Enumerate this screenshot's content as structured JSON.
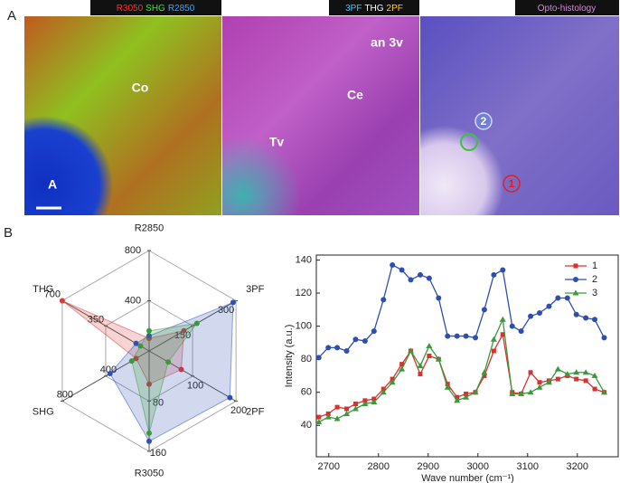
{
  "figure": {
    "panels": [
      "A",
      "B"
    ],
    "images": [
      {
        "header": [
          {
            "text": "R3050",
            "color": "#ff3030"
          },
          {
            "text": "SHG",
            "color": "#40e040"
          },
          {
            "text": "R2850",
            "color": "#40a0ff"
          }
        ],
        "labels": [
          "Co",
          "A"
        ]
      },
      {
        "header": [
          {
            "text": "3PF",
            "color": "#40c8ff"
          },
          {
            "text": "THG",
            "color": "#ffffff"
          },
          {
            "text": "2PF",
            "color": "#ffd040"
          }
        ],
        "labels": [
          "an 3v",
          "Ce",
          "Tv"
        ]
      },
      {
        "header": [
          {
            "text": "Opto-histology",
            "color": "#e080e0"
          }
        ],
        "labels": [
          "2",
          "1"
        ]
      }
    ]
  },
  "chart_data": [
    {
      "type": "radar",
      "axes": [
        {
          "name": "R2850",
          "color": "#222222",
          "lim": [
            0,
            800
          ],
          "ticks": [
            400,
            800
          ]
        },
        {
          "name": "3PF",
          "color": "#d02020",
          "lim": [
            0,
            300
          ],
          "ticks": [
            150,
            300
          ]
        },
        {
          "name": "2PF",
          "color": "#222222",
          "lim": [
            0,
            200
          ],
          "ticks": [
            100,
            200
          ]
        },
        {
          "name": "R3050",
          "color": "#222222",
          "lim": [
            0,
            160
          ],
          "ticks": [
            80,
            160
          ]
        },
        {
          "name": "SHG",
          "color": "#222222",
          "lim": [
            0,
            800
          ],
          "ticks": [
            400,
            800
          ]
        },
        {
          "name": "THG",
          "color": "#d02020",
          "lim": [
            0,
            700
          ],
          "ticks": [
            350,
            700
          ]
        }
      ],
      "series": [
        {
          "name": "1",
          "color": "#d93a3a",
          "values": [
            100,
            120,
            74,
            53,
            120,
            700
          ]
        },
        {
          "name": "2",
          "color": "#3050b8",
          "values": [
            120,
            290,
            186,
            144,
            360,
            105
          ]
        },
        {
          "name": "3",
          "color": "#3a9a3a",
          "values": [
            160,
            165,
            44,
            131,
            160,
            70
          ]
        }
      ]
    },
    {
      "type": "line",
      "x_label": "Wave number (cm⁻¹)",
      "y_label": "Intensity (a.u.)",
      "x": [
        2680,
        2699,
        2717,
        2736,
        2754,
        2773,
        2791,
        2810,
        2828,
        2847,
        2865,
        2884,
        2902,
        2921,
        2939,
        2958,
        2976,
        2995,
        3013,
        3032,
        3050,
        3069,
        3087,
        3106,
        3124,
        3143,
        3161,
        3180,
        3198,
        3217,
        3235,
        3254
      ],
      "xlim": [
        2675,
        3284
      ],
      "xticks": [
        2700,
        2800,
        2900,
        3000,
        3100,
        3200
      ],
      "ylim": [
        21,
        143
      ],
      "yticks": [
        40,
        60,
        80,
        100,
        120,
        140
      ],
      "legend": "top-right",
      "series": [
        {
          "name": "1",
          "color": "#d93030",
          "marker": "square",
          "values": [
            45,
            47,
            51,
            50,
            53,
            55,
            56,
            62,
            68,
            77,
            85,
            71,
            82,
            80,
            65,
            57,
            59,
            60,
            70,
            85,
            95,
            60,
            59,
            72,
            66,
            67,
            68,
            70,
            68,
            67,
            62,
            60
          ]
        },
        {
          "name": "2",
          "color": "#2f4fb0",
          "marker": "circle",
          "values": [
            81,
            87,
            87,
            85,
            92,
            91,
            97,
            116,
            137,
            134,
            128,
            131,
            129,
            117,
            94,
            94,
            94,
            93,
            110,
            131,
            134,
            100,
            97,
            106,
            108,
            112,
            117,
            117,
            107,
            105,
            104,
            93
          ]
        },
        {
          "name": "3",
          "color": "#3a9a3a",
          "marker": "triangle",
          "values": [
            42,
            45,
            44,
            47,
            50,
            53,
            54,
            60,
            66,
            74,
            85,
            76,
            88,
            80,
            63,
            55,
            57,
            60,
            72,
            92,
            104,
            59,
            59,
            60,
            63,
            66,
            74,
            71,
            72,
            72,
            70,
            60
          ]
        }
      ]
    }
  ]
}
